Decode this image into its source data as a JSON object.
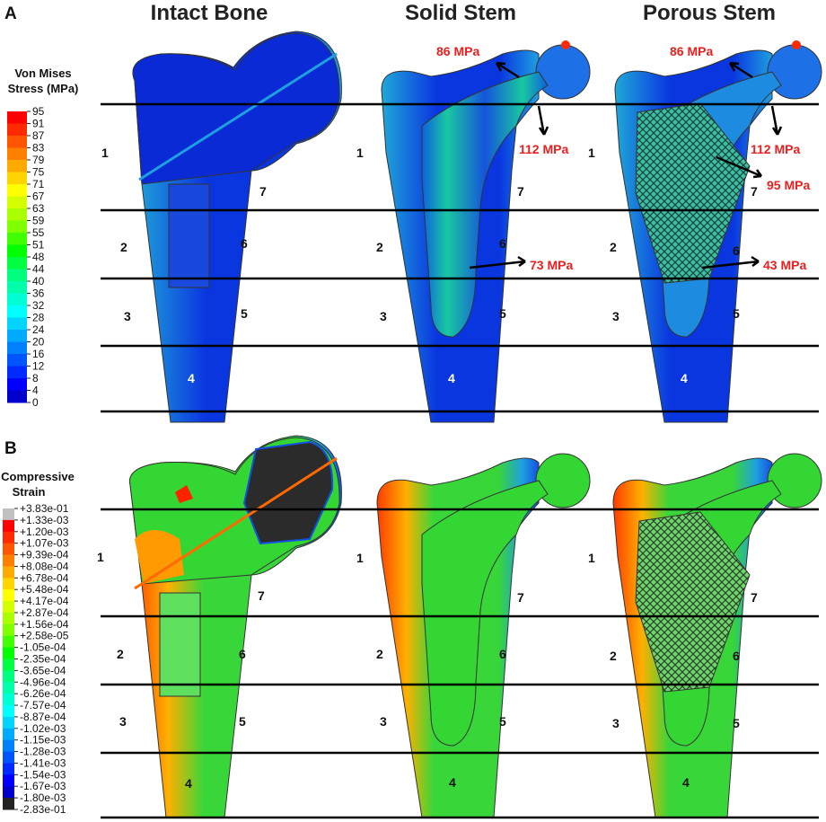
{
  "panels": [
    {
      "label": "A"
    },
    {
      "label": "B"
    }
  ],
  "headers": [
    "Intact Bone",
    "Solid Stem",
    "Porous Stem"
  ],
  "zones": [
    "1",
    "2",
    "3",
    "4",
    "5",
    "6",
    "7"
  ],
  "legend_stress": {
    "title_line1": "Von Mises",
    "title_line2": "Stress (MPa)",
    "ticks": [
      "95",
      "91",
      "87",
      "83",
      "79",
      "75",
      "71",
      "67",
      "63",
      "59",
      "55",
      "51",
      "48",
      "44",
      "40",
      "36",
      "32",
      "28",
      "24",
      "20",
      "16",
      "12",
      "8",
      "4",
      "0"
    ],
    "colors": [
      "#ff0000",
      "#ff2a00",
      "#ff5500",
      "#ff7f00",
      "#ffaa00",
      "#ffd400",
      "#ffff00",
      "#d4ff00",
      "#aaff00",
      "#7fff00",
      "#40ff00",
      "#00ff00",
      "#00ff40",
      "#00ff7f",
      "#00ffaa",
      "#00ffd4",
      "#00ffff",
      "#00d4ff",
      "#00aaff",
      "#007fff",
      "#0055ff",
      "#002aff",
      "#0000ff",
      "#0000cc"
    ]
  },
  "legend_strain": {
    "title_line1": "Compressive",
    "title_line2": "Strain",
    "ticks": [
      "+3.83e-01",
      "+1.33e-03",
      "+1.20e-03",
      "+1.07e-03",
      "+9.39e-04",
      "+8.08e-04",
      "+6.78e-04",
      "+5.48e-04",
      "+4.17e-04",
      "+2.87e-04",
      "+1.56e-04",
      "+2.58e-05",
      "-1.05e-04",
      "-2.35e-04",
      "-3.65e-04",
      "-4.96e-04",
      "-6.26e-04",
      "-7.57e-04",
      "-8.87e-04",
      "-1.02e-03",
      "-1.15e-03",
      "-1.28e-03",
      "-1.41e-03",
      "-1.54e-03",
      "-1.67e-03",
      "-1.80e-03",
      "-2.83e-01"
    ],
    "colors": [
      "#c0c0c0",
      "#ff0000",
      "#ff2a00",
      "#ff5500",
      "#ff7f00",
      "#ffaa00",
      "#ffd400",
      "#ffff00",
      "#d4ff00",
      "#aaff00",
      "#7fff00",
      "#40ff00",
      "#00ff00",
      "#00ff40",
      "#00ff7f",
      "#00ffaa",
      "#00ffd4",
      "#00ffff",
      "#00d4ff",
      "#00aaff",
      "#007fff",
      "#0055ff",
      "#002aff",
      "#0000ff",
      "#0000cc",
      "#222222"
    ]
  },
  "stress_labels": {
    "solid": [
      "86 MPa",
      "112 MPa",
      "73 MPa"
    ],
    "porous": [
      "86 MPa",
      "112 MPa",
      "95 MPa",
      "43 MPa"
    ]
  },
  "colors": {
    "intact_stress_fill": "#0a2ad6",
    "stem_stress_fill": "#1d5fe0",
    "strain_green": "#33d633",
    "stress_red": "#e8201f"
  }
}
